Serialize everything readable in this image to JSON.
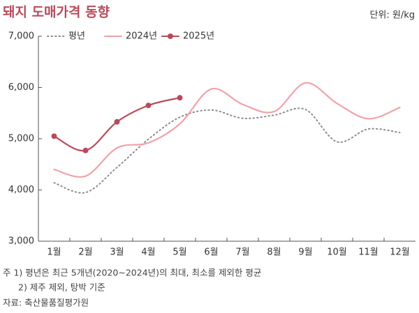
{
  "chart_data": {
    "type": "line",
    "title": "돼지 도매가격 동향",
    "unit": "단위: 원/kg",
    "categories": [
      "1월",
      "2월",
      "3월",
      "4월",
      "5월",
      "6월",
      "7월",
      "8월",
      "9월",
      "10월",
      "11월",
      "12월"
    ],
    "series": [
      {
        "name": "평년",
        "color": "#8c8c8c",
        "style": "dotted",
        "values": [
          4140,
          3950,
          4440,
          4990,
          5420,
          5560,
          5400,
          5460,
          5570,
          4940,
          5190,
          5120
        ]
      },
      {
        "name": "2024년",
        "color": "#f0a2ab",
        "style": "solid",
        "values": [
          4400,
          4270,
          4820,
          4920,
          5290,
          5970,
          5670,
          5530,
          6090,
          5690,
          5390,
          5610
        ]
      },
      {
        "name": "2025년",
        "color": "#b84a5a",
        "style": "solid",
        "markers": true,
        "values": [
          5050,
          4770,
          5330,
          5650,
          5800,
          null,
          null,
          null,
          null,
          null,
          null,
          null
        ]
      }
    ],
    "ylim": [
      3000,
      7000
    ],
    "yticks": [
      {
        "value": 3000,
        "label": "3,000"
      },
      {
        "value": 4000,
        "label": "4,000"
      },
      {
        "value": 5000,
        "label": "5,000"
      },
      {
        "value": 6000,
        "label": "6,000"
      },
      {
        "value": 7000,
        "label": "7,000"
      }
    ],
    "grid": false,
    "legend": "top-left",
    "notes": [
      "주 1) 평년은 최근 5개년(2020~2024년)의 최대, 최소를 제외한 평균",
      "2) 제주 제외, 탕박 기준",
      "자료: 축산물품질평가원"
    ]
  }
}
